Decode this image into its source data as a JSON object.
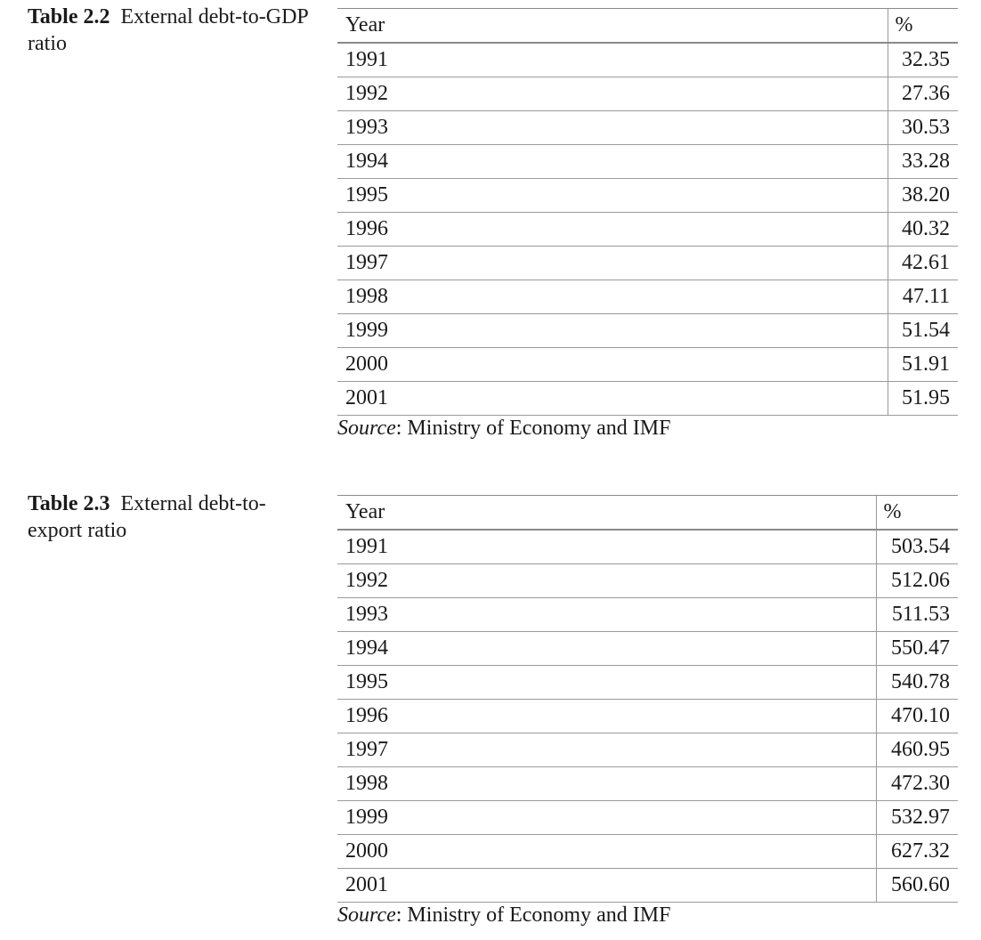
{
  "tables": [
    {
      "label": "Table 2.2",
      "title": "External debt-to-GDP ratio",
      "columns": [
        "Year",
        "%"
      ],
      "rows": [
        [
          "1991",
          "32.35"
        ],
        [
          "1992",
          "27.36"
        ],
        [
          "1993",
          "30.53"
        ],
        [
          "1994",
          "33.28"
        ],
        [
          "1995",
          "38.20"
        ],
        [
          "1996",
          "40.32"
        ],
        [
          "1997",
          "42.61"
        ],
        [
          "1998",
          "47.11"
        ],
        [
          "1999",
          "51.54"
        ],
        [
          "2000",
          "51.91"
        ],
        [
          "2001",
          "51.95"
        ]
      ],
      "source_label": "Source",
      "source_text": ": Ministry of Economy and IMF"
    },
    {
      "label": "Table 2.3",
      "title": "External debt-to-export ratio",
      "columns": [
        "Year",
        "%"
      ],
      "rows": [
        [
          "1991",
          "503.54"
        ],
        [
          "1992",
          "512.06"
        ],
        [
          "1993",
          "511.53"
        ],
        [
          "1994",
          "550.47"
        ],
        [
          "1995",
          "540.78"
        ],
        [
          "1996",
          "470.10"
        ],
        [
          "1997",
          "460.95"
        ],
        [
          "1998",
          "472.30"
        ],
        [
          "1999",
          "532.97"
        ],
        [
          "2000",
          "627.32"
        ],
        [
          "2001",
          "560.60"
        ]
      ],
      "source_label": "Source",
      "source_text": ": Ministry of Economy and IMF"
    }
  ]
}
